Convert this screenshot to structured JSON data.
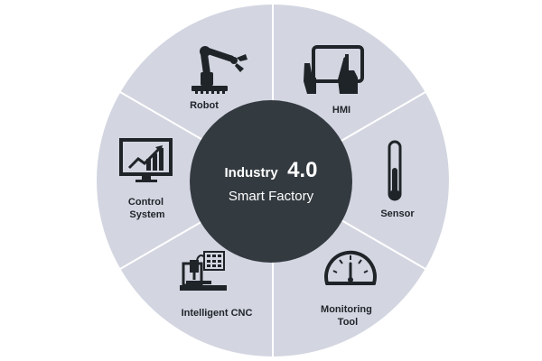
{
  "diagram": {
    "center": {
      "title_word": "Industry",
      "title_version": "4.0",
      "subtitle": "Smart Factory"
    },
    "segments": [
      {
        "id": "robot",
        "label_lines": [
          "Robot"
        ],
        "icon": "robot-arm-icon"
      },
      {
        "id": "hmi",
        "label_lines": [
          "HMI"
        ],
        "icon": "touchscreen-hands-icon"
      },
      {
        "id": "sensor",
        "label_lines": [
          "Sensor"
        ],
        "icon": "thermometer-sensor-icon"
      },
      {
        "id": "monitoring-tool",
        "label_lines": [
          "Monitoring",
          "Tool"
        ],
        "icon": "gauge-icon"
      },
      {
        "id": "intelligent-cnc",
        "label_lines": [
          "Intelligent CNC"
        ],
        "icon": "cnc-machine-icon"
      },
      {
        "id": "control-system",
        "label_lines": [
          "Control",
          "System"
        ],
        "icon": "monitor-chart-icon"
      }
    ],
    "colors": {
      "ring": "#d3d6e1",
      "divider": "#ffffff",
      "hub": "#333a40",
      "icon": "#1f2428",
      "label": "#1f2428",
      "hub_text": "#ffffff"
    }
  }
}
